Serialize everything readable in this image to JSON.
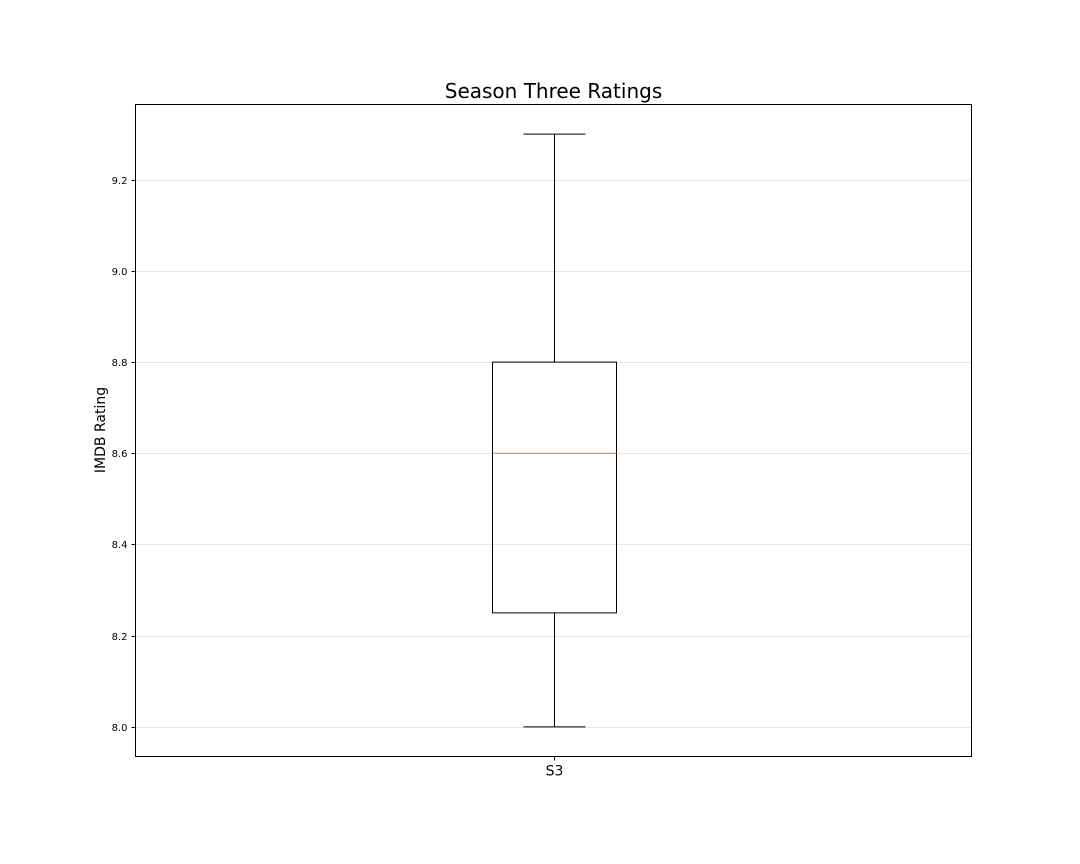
{
  "chart_data": {
    "type": "box",
    "title": "Season Three Ratings",
    "xlabel": "",
    "ylabel": "IMDB Rating",
    "categories": [
      "S3"
    ],
    "boxes": [
      {
        "category": "S3",
        "whisker_low": 8.0,
        "q1": 8.25,
        "median": 8.6,
        "q3": 8.8,
        "whisker_high": 9.3
      }
    ],
    "yticks": [
      8.0,
      8.2,
      8.4,
      8.6,
      8.8,
      9.0,
      9.2
    ],
    "ytick_labels": [
      "8.0",
      "8.2",
      "8.4",
      "8.6",
      "8.8",
      "9.0",
      "9.2"
    ],
    "ylim": [
      7.935,
      9.365
    ],
    "grid": true,
    "colors": {
      "box": "#000000",
      "median": "#ff7f0e",
      "grid": "#e6e6e6"
    }
  }
}
